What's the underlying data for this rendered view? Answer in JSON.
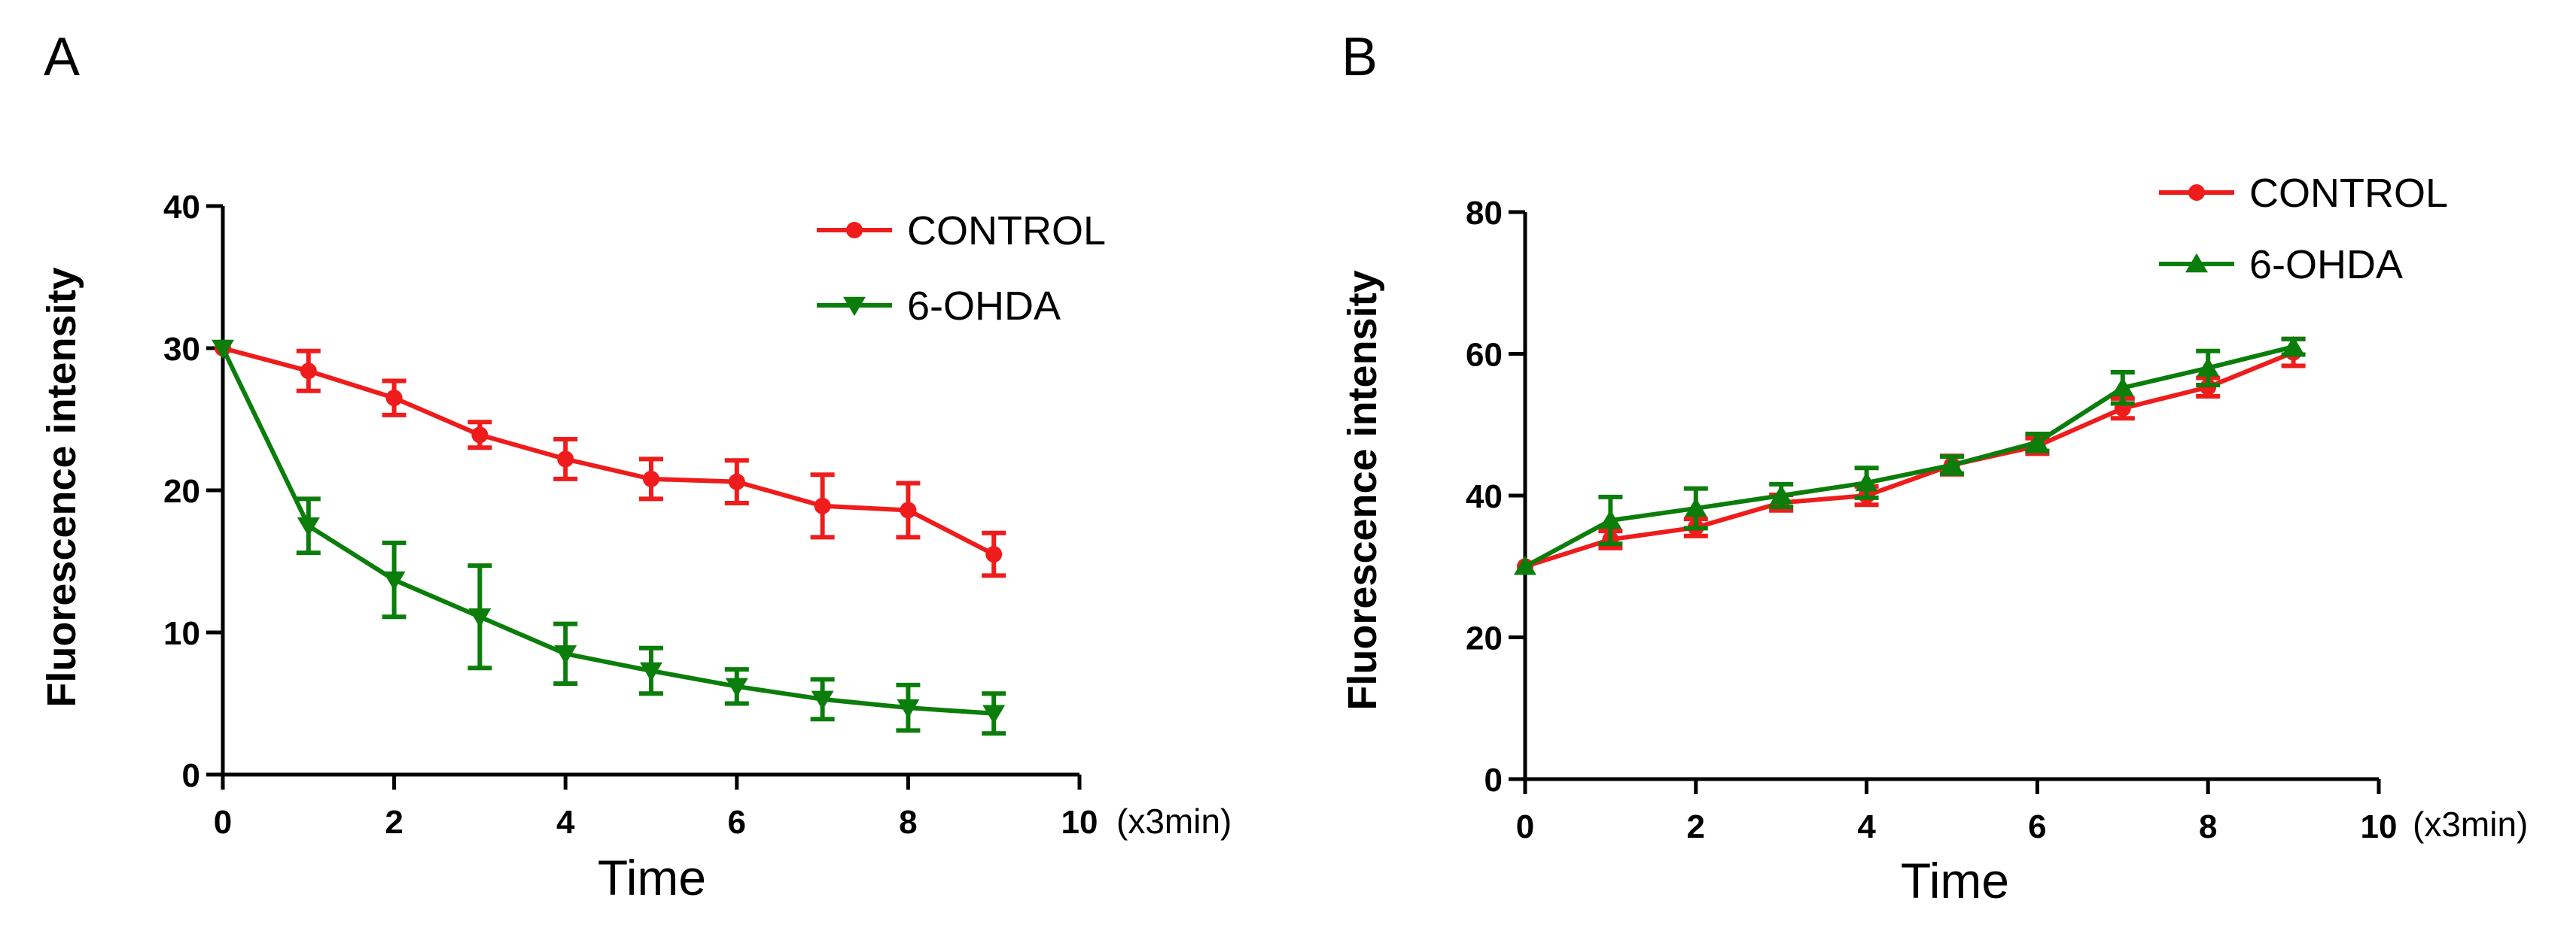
{
  "panels": [
    {
      "letter": "A"
    },
    {
      "letter": "B"
    }
  ],
  "chart_data": [
    {
      "type": "line",
      "panel": "A",
      "xlabel": "Time",
      "xunit": "(x3min)",
      "ylabel": "Fluorescence intensity",
      "xlim": [
        0,
        10
      ],
      "ylim": [
        0,
        40
      ],
      "xticks": [
        0,
        2,
        4,
        6,
        8,
        10
      ],
      "yticks": [
        0,
        10,
        20,
        30,
        40
      ],
      "grid": false,
      "legend_position": "top-right",
      "series": [
        {
          "name": "CONTROL",
          "color": "#ef1c1c",
          "marker": "circle",
          "x": [
            0,
            1,
            2,
            3,
            4,
            5,
            6,
            7,
            8,
            9
          ],
          "values": [
            30,
            28.4,
            26.5,
            23.9,
            22.2,
            20.8,
            20.6,
            18.9,
            18.6,
            15.5
          ],
          "error": [
            0,
            1.4,
            1.2,
            0.9,
            1.4,
            1.4,
            1.5,
            2.2,
            1.9,
            1.5
          ]
        },
        {
          "name": "6-OHDA",
          "color": "#0b7d0b",
          "marker": "triangle-down",
          "x": [
            0,
            1,
            2,
            3,
            4,
            5,
            6,
            7,
            8,
            9
          ],
          "values": [
            30,
            17.5,
            13.7,
            11.1,
            8.5,
            7.3,
            6.2,
            5.3,
            4.7,
            4.3
          ],
          "error": [
            0,
            1.9,
            2.6,
            3.6,
            2.1,
            1.6,
            1.2,
            1.4,
            1.6,
            1.4
          ]
        }
      ]
    },
    {
      "type": "line",
      "panel": "B",
      "xlabel": "Time",
      "xunit": "(x3min)",
      "ylabel": "Fluorescence intensity",
      "xlim": [
        0,
        10
      ],
      "ylim": [
        0,
        80
      ],
      "xticks": [
        0,
        2,
        4,
        6,
        8,
        10
      ],
      "yticks": [
        0,
        20,
        40,
        60,
        80
      ],
      "grid": false,
      "legend_position": "top-right",
      "series": [
        {
          "name": "CONTROL",
          "color": "#ef1c1c",
          "marker": "circle",
          "x": [
            0,
            1,
            2,
            3,
            4,
            5,
            6,
            7,
            8,
            9
          ],
          "values": [
            30,
            33.8,
            35.5,
            39,
            40,
            44.3,
            47,
            52.3,
            55.3,
            60.2
          ],
          "error": [
            0,
            1.2,
            1.2,
            1.1,
            1.3,
            1.3,
            1.1,
            1.4,
            1.3,
            1.9
          ]
        },
        {
          "name": "6-OHDA",
          "color": "#0b7d0b",
          "marker": "triangle-up",
          "x": [
            0,
            1,
            2,
            3,
            4,
            5,
            6,
            7,
            8,
            9
          ],
          "values": [
            30,
            36.5,
            38.2,
            40,
            41.8,
            44.3,
            47.5,
            55.2,
            58,
            61
          ],
          "error": [
            0,
            3.3,
            2.8,
            1.6,
            2.1,
            1.2,
            1.2,
            2.2,
            2.4,
            1.1
          ]
        }
      ]
    }
  ]
}
